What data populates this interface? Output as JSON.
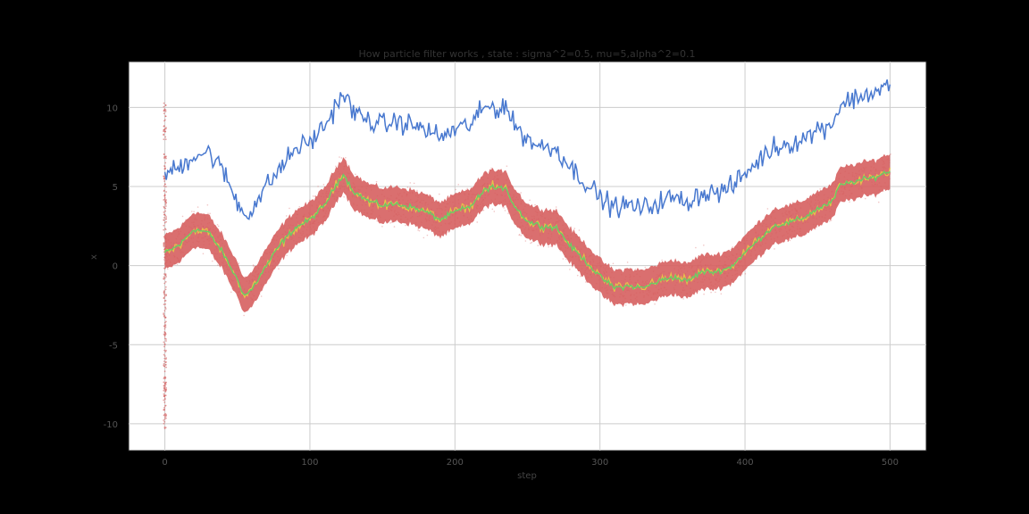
{
  "chart_data": {
    "type": "line",
    "title": "How particle filter works , state : sigma^2=0.5, mu=5,alpha^2=0.1",
    "xlabel": "step",
    "ylabel": "x",
    "xlim": [
      -25,
      525
    ],
    "ylim": [
      -11.7,
      12.9
    ],
    "xticks": [
      0,
      100,
      200,
      300,
      400,
      500
    ],
    "yticks": [
      -10,
      -5,
      0,
      5,
      10
    ],
    "grid": true,
    "legend": "none",
    "colors": {
      "observation": "#4878cf",
      "particles": "#d65f5f",
      "true_state": "#6acc65",
      "estimate": "#e8c14a",
      "plot_background": "#ffffff",
      "grid": "#cccccc",
      "figure_background": "#000000"
    },
    "initial_particle_spread": {
      "x": 0,
      "y_min": -10.3,
      "y_max": 10.5
    },
    "particle_band_halfwidth": 1.1,
    "series": [
      {
        "role": "observation",
        "x": [
          0,
          10,
          20,
          30,
          40,
          50,
          55,
          60,
          70,
          80,
          90,
          100,
          110,
          115,
          120,
          123,
          130,
          140,
          150,
          160,
          170,
          180,
          190,
          200,
          210,
          220,
          225,
          230,
          235,
          240,
          250,
          260,
          270,
          280,
          290,
          295,
          300,
          310,
          320,
          330,
          340,
          350,
          360,
          370,
          380,
          390,
          400,
          410,
          420,
          430,
          440,
          450,
          460,
          465,
          470,
          480,
          490,
          500
        ],
        "y": [
          5.8,
          6.2,
          7.0,
          7.2,
          6.0,
          4.0,
          3.2,
          3.6,
          5.0,
          6.2,
          7.4,
          7.8,
          8.8,
          9.6,
          10.5,
          10.9,
          9.7,
          9.2,
          8.9,
          9.1,
          8.9,
          8.6,
          8.1,
          8.6,
          8.9,
          9.9,
          10.1,
          9.9,
          10.2,
          9.0,
          8.0,
          7.5,
          7.4,
          6.2,
          5.3,
          4.8,
          4.3,
          3.7,
          3.8,
          3.6,
          4.0,
          4.3,
          4.0,
          4.6,
          4.6,
          4.9,
          5.8,
          6.7,
          7.5,
          7.7,
          8.0,
          8.6,
          9.0,
          10.0,
          10.4,
          10.7,
          11.0,
          11.4
        ]
      },
      {
        "role": "true_state",
        "x": [
          0,
          10,
          20,
          30,
          40,
          50,
          55,
          60,
          70,
          80,
          90,
          100,
          110,
          115,
          120,
          123,
          130,
          140,
          150,
          160,
          170,
          180,
          190,
          200,
          210,
          220,
          225,
          230,
          235,
          240,
          250,
          260,
          270,
          280,
          290,
          295,
          300,
          310,
          320,
          330,
          340,
          350,
          360,
          370,
          380,
          390,
          400,
          410,
          420,
          430,
          440,
          450,
          460,
          465,
          470,
          480,
          490,
          500
        ],
        "y": [
          0.8,
          1.3,
          2.3,
          2.1,
          0.8,
          -0.9,
          -1.9,
          -1.5,
          0.0,
          1.4,
          2.4,
          2.9,
          3.8,
          4.6,
          5.4,
          5.8,
          4.7,
          4.1,
          3.8,
          3.9,
          3.7,
          3.4,
          2.9,
          3.4,
          3.7,
          4.7,
          5.0,
          4.8,
          5.0,
          3.9,
          2.8,
          2.5,
          2.4,
          1.2,
          0.3,
          -0.2,
          -0.7,
          -1.4,
          -1.3,
          -1.4,
          -1.0,
          -0.7,
          -1.0,
          -0.4,
          -0.4,
          -0.1,
          0.8,
          1.7,
          2.5,
          2.7,
          3.0,
          3.6,
          4.0,
          5.0,
          5.2,
          5.4,
          5.6,
          6.0
        ]
      }
    ]
  }
}
